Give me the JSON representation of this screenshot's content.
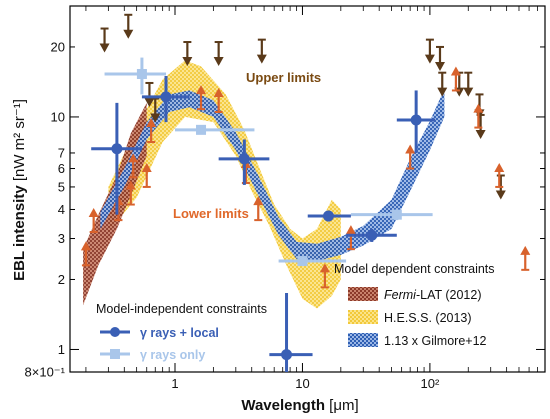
{
  "chart_data": {
    "type": "scatter",
    "xlabel_main": "Wavelength",
    "xlabel_unit": "[μm]",
    "ylabel_main": "EBL intensity",
    "ylabel_unit": "[nW m² sr⁻¹]",
    "x_scale": "log",
    "y_scale": "log",
    "xlim": [
      0.15,
      800
    ],
    "ylim": [
      0.8,
      30
    ],
    "x_ticks": [
      {
        "value": 1,
        "label": "1"
      },
      {
        "value": 10,
        "label": "10"
      },
      {
        "value": 100,
        "label": "10²"
      }
    ],
    "y_ticks": [
      {
        "value": 0.8,
        "label": "8×10⁻¹"
      },
      {
        "value": 1,
        "label": "1"
      },
      {
        "value": 2,
        "label": "2"
      },
      {
        "value": 3,
        "label": "3"
      },
      {
        "value": 4,
        "label": "4"
      },
      {
        "value": 5,
        "label": "5"
      },
      {
        "value": 6,
        "label": "6"
      },
      {
        "value": 7,
        "label": "7"
      },
      {
        "value": 10,
        "label": "10"
      },
      {
        "value": 20,
        "label": "20"
      }
    ],
    "annotations": {
      "upper": "Upper limits",
      "lower": "Lower limits"
    },
    "legend_left": {
      "title": "Model-independent constraints",
      "entries": [
        "γ rays + local",
        "γ rays only"
      ],
      "colors": [
        "#3a5fb5",
        "#a9c6ea"
      ]
    },
    "legend_right": {
      "title": "Model dependent constraints",
      "entries_prefix": [
        "",
        "",
        ""
      ],
      "entries": [
        {
          "em": "Fermi",
          "rest": "-LAT (2012)",
          "color": "#8c3a2a"
        },
        {
          "em": "",
          "rest": "H.E.S.S. (2013)",
          "color": "#f5d24a"
        },
        {
          "em": "",
          "rest": "1.13 x Gilmore+12",
          "color": "#3d6fbf"
        }
      ]
    },
    "bands": {
      "fermi": {
        "color": "#8c3a2a",
        "lower": [
          [
            0.19,
            1.55
          ],
          [
            0.25,
            2.3
          ],
          [
            0.35,
            3.3
          ],
          [
            0.45,
            4.6
          ],
          [
            0.6,
            6.8
          ]
        ],
        "upper": [
          [
            0.19,
            2.7
          ],
          [
            0.25,
            3.8
          ],
          [
            0.35,
            5.6
          ],
          [
            0.45,
            8.5
          ],
          [
            0.6,
            11.5
          ]
        ]
      },
      "hess": {
        "color": "#f5d24a",
        "lower": [
          [
            0.3,
            3.2
          ],
          [
            0.5,
            4.5
          ],
          [
            0.8,
            7.8
          ],
          [
            1.2,
            10.0
          ],
          [
            2.0,
            9.5
          ],
          [
            3.0,
            6.8
          ],
          [
            4.0,
            4.8
          ],
          [
            5.5,
            3.4
          ],
          [
            7.5,
            2.3
          ],
          [
            10,
            1.65
          ],
          [
            13,
            1.5
          ],
          [
            17,
            1.7
          ],
          [
            20,
            2.0
          ]
        ],
        "upper": [
          [
            0.3,
            5.0
          ],
          [
            0.5,
            9.0
          ],
          [
            0.8,
            14.5
          ],
          [
            1.2,
            17.5
          ],
          [
            1.6,
            16.5
          ],
          [
            2.5,
            12.5
          ],
          [
            3.5,
            8.8
          ],
          [
            4.5,
            6.2
          ],
          [
            6,
            4.2
          ],
          [
            8,
            3.3
          ],
          [
            10,
            3.0
          ],
          [
            13,
            3.3
          ],
          [
            17,
            4.4
          ],
          [
            20,
            4.0
          ]
        ]
      },
      "gilmore": {
        "color": "#3d6fbf",
        "lower": [
          [
            0.26,
            3.3
          ],
          [
            0.4,
            5.0
          ],
          [
            0.6,
            8.0
          ],
          [
            0.9,
            10.5
          ],
          [
            1.3,
            11.0
          ],
          [
            2.0,
            10.0
          ],
          [
            3.0,
            7.2
          ],
          [
            4.5,
            4.6
          ],
          [
            6.5,
            3.1
          ],
          [
            9,
            2.45
          ],
          [
            13,
            2.4
          ],
          [
            20,
            2.55
          ],
          [
            30,
            2.8
          ],
          [
            50,
            3.3
          ],
          [
            70,
            4.8
          ],
          [
            100,
            7.2
          ],
          [
            130,
            10.0
          ]
        ],
        "upper": [
          [
            0.26,
            3.9
          ],
          [
            0.4,
            6.0
          ],
          [
            0.6,
            9.5
          ],
          [
            0.9,
            12.5
          ],
          [
            1.3,
            13.0
          ],
          [
            2.0,
            11.8
          ],
          [
            3.0,
            8.6
          ],
          [
            4.5,
            5.6
          ],
          [
            6.5,
            3.7
          ],
          [
            9,
            2.9
          ],
          [
            13,
            2.85
          ],
          [
            20,
            3.05
          ],
          [
            30,
            3.4
          ],
          [
            50,
            4.4
          ],
          [
            70,
            6.6
          ],
          [
            100,
            9.6
          ],
          [
            130,
            13.2
          ]
        ]
      }
    },
    "series_gamma_local": {
      "color": "#3a5fb5",
      "points": [
        {
          "x": 0.35,
          "y": 7.3,
          "xlo": 0.22,
          "xhi": 0.55,
          "ylo": 3.8,
          "yhi": 11.5
        },
        {
          "x": 0.85,
          "y": 12.2,
          "xlo": 0.55,
          "xhi": 1.3,
          "ylo": 9.5,
          "yhi": 15.0
        },
        {
          "x": 3.5,
          "y": 6.6,
          "xlo": 2.2,
          "xhi": 5.5,
          "ylo": 5.1,
          "yhi": 8.0
        },
        {
          "x": 7.5,
          "y": 0.95,
          "xlo": 5.5,
          "xhi": 12.0,
          "ylo": 0.8,
          "yhi": 1.75
        },
        {
          "x": 16,
          "y": 3.75,
          "xlo": 11,
          "xhi": 24,
          "ylo": 3.55,
          "yhi": 3.95
        },
        {
          "x": 35,
          "y": 3.1,
          "xlo": 22,
          "xhi": 55,
          "ylo": 2.9,
          "yhi": 3.3
        },
        {
          "x": 78,
          "y": 9.7,
          "xlo": 55,
          "xhi": 110,
          "ylo": 7.0,
          "yhi": 13.0
        }
      ]
    },
    "series_gamma_only": {
      "color": "#a9c6ea",
      "points": [
        {
          "x": 0.55,
          "y": 15.3,
          "xlo": 0.28,
          "xhi": 0.85,
          "ylo": 12.5,
          "yhi": 18.0
        },
        {
          "x": 1.6,
          "y": 8.8,
          "xlo": 1.0,
          "xhi": 4.2,
          "ylo": 8.5,
          "yhi": 9.1
        },
        {
          "x": 10,
          "y": 2.4,
          "xlo": 6.5,
          "xhi": 22,
          "ylo": 2.3,
          "yhi": 2.5
        },
        {
          "x": 55,
          "y": 3.8,
          "xlo": 24,
          "xhi": 105,
          "ylo": 3.6,
          "yhi": 4.0
        }
      ]
    },
    "upper_limits": {
      "color": "#5a3a1a",
      "points": [
        {
          "x": 0.28,
          "y": 24.0
        },
        {
          "x": 0.43,
          "y": 27.5
        },
        {
          "x": 0.63,
          "y": 14.0
        },
        {
          "x": 0.7,
          "y": 12.0
        },
        {
          "x": 1.25,
          "y": 21.0
        },
        {
          "x": 2.2,
          "y": 21.0
        },
        {
          "x": 4.8,
          "y": 21.5
        },
        {
          "x": 100,
          "y": 21.5
        },
        {
          "x": 120,
          "y": 20.0
        },
        {
          "x": 125,
          "y": 15.5
        },
        {
          "x": 170,
          "y": 15.5
        },
        {
          "x": 200,
          "y": 15.5
        },
        {
          "x": 245,
          "y": 12.5
        },
        {
          "x": 250,
          "y": 10.2
        },
        {
          "x": 360,
          "y": 5.6
        }
      ]
    },
    "lower_limits": {
      "color": "#d8622c",
      "points": [
        {
          "x": 0.2,
          "y": 2.3
        },
        {
          "x": 0.23,
          "y": 3.2
        },
        {
          "x": 0.36,
          "y": 3.6
        },
        {
          "x": 0.45,
          "y": 4.2
        },
        {
          "x": 0.47,
          "y": 5.5
        },
        {
          "x": 0.6,
          "y": 5.0
        },
        {
          "x": 0.65,
          "y": 7.8
        },
        {
          "x": 1.6,
          "y": 10.8
        },
        {
          "x": 2.2,
          "y": 10.5
        },
        {
          "x": 3.6,
          "y": 5.2
        },
        {
          "x": 4.5,
          "y": 3.6
        },
        {
          "x": 15,
          "y": 1.85
        },
        {
          "x": 24,
          "y": 2.7
        },
        {
          "x": 70,
          "y": 6.0
        },
        {
          "x": 160,
          "y": 13.0
        },
        {
          "x": 240,
          "y": 9.0
        },
        {
          "x": 350,
          "y": 5.0
        },
        {
          "x": 560,
          "y": 2.2
        }
      ]
    }
  }
}
